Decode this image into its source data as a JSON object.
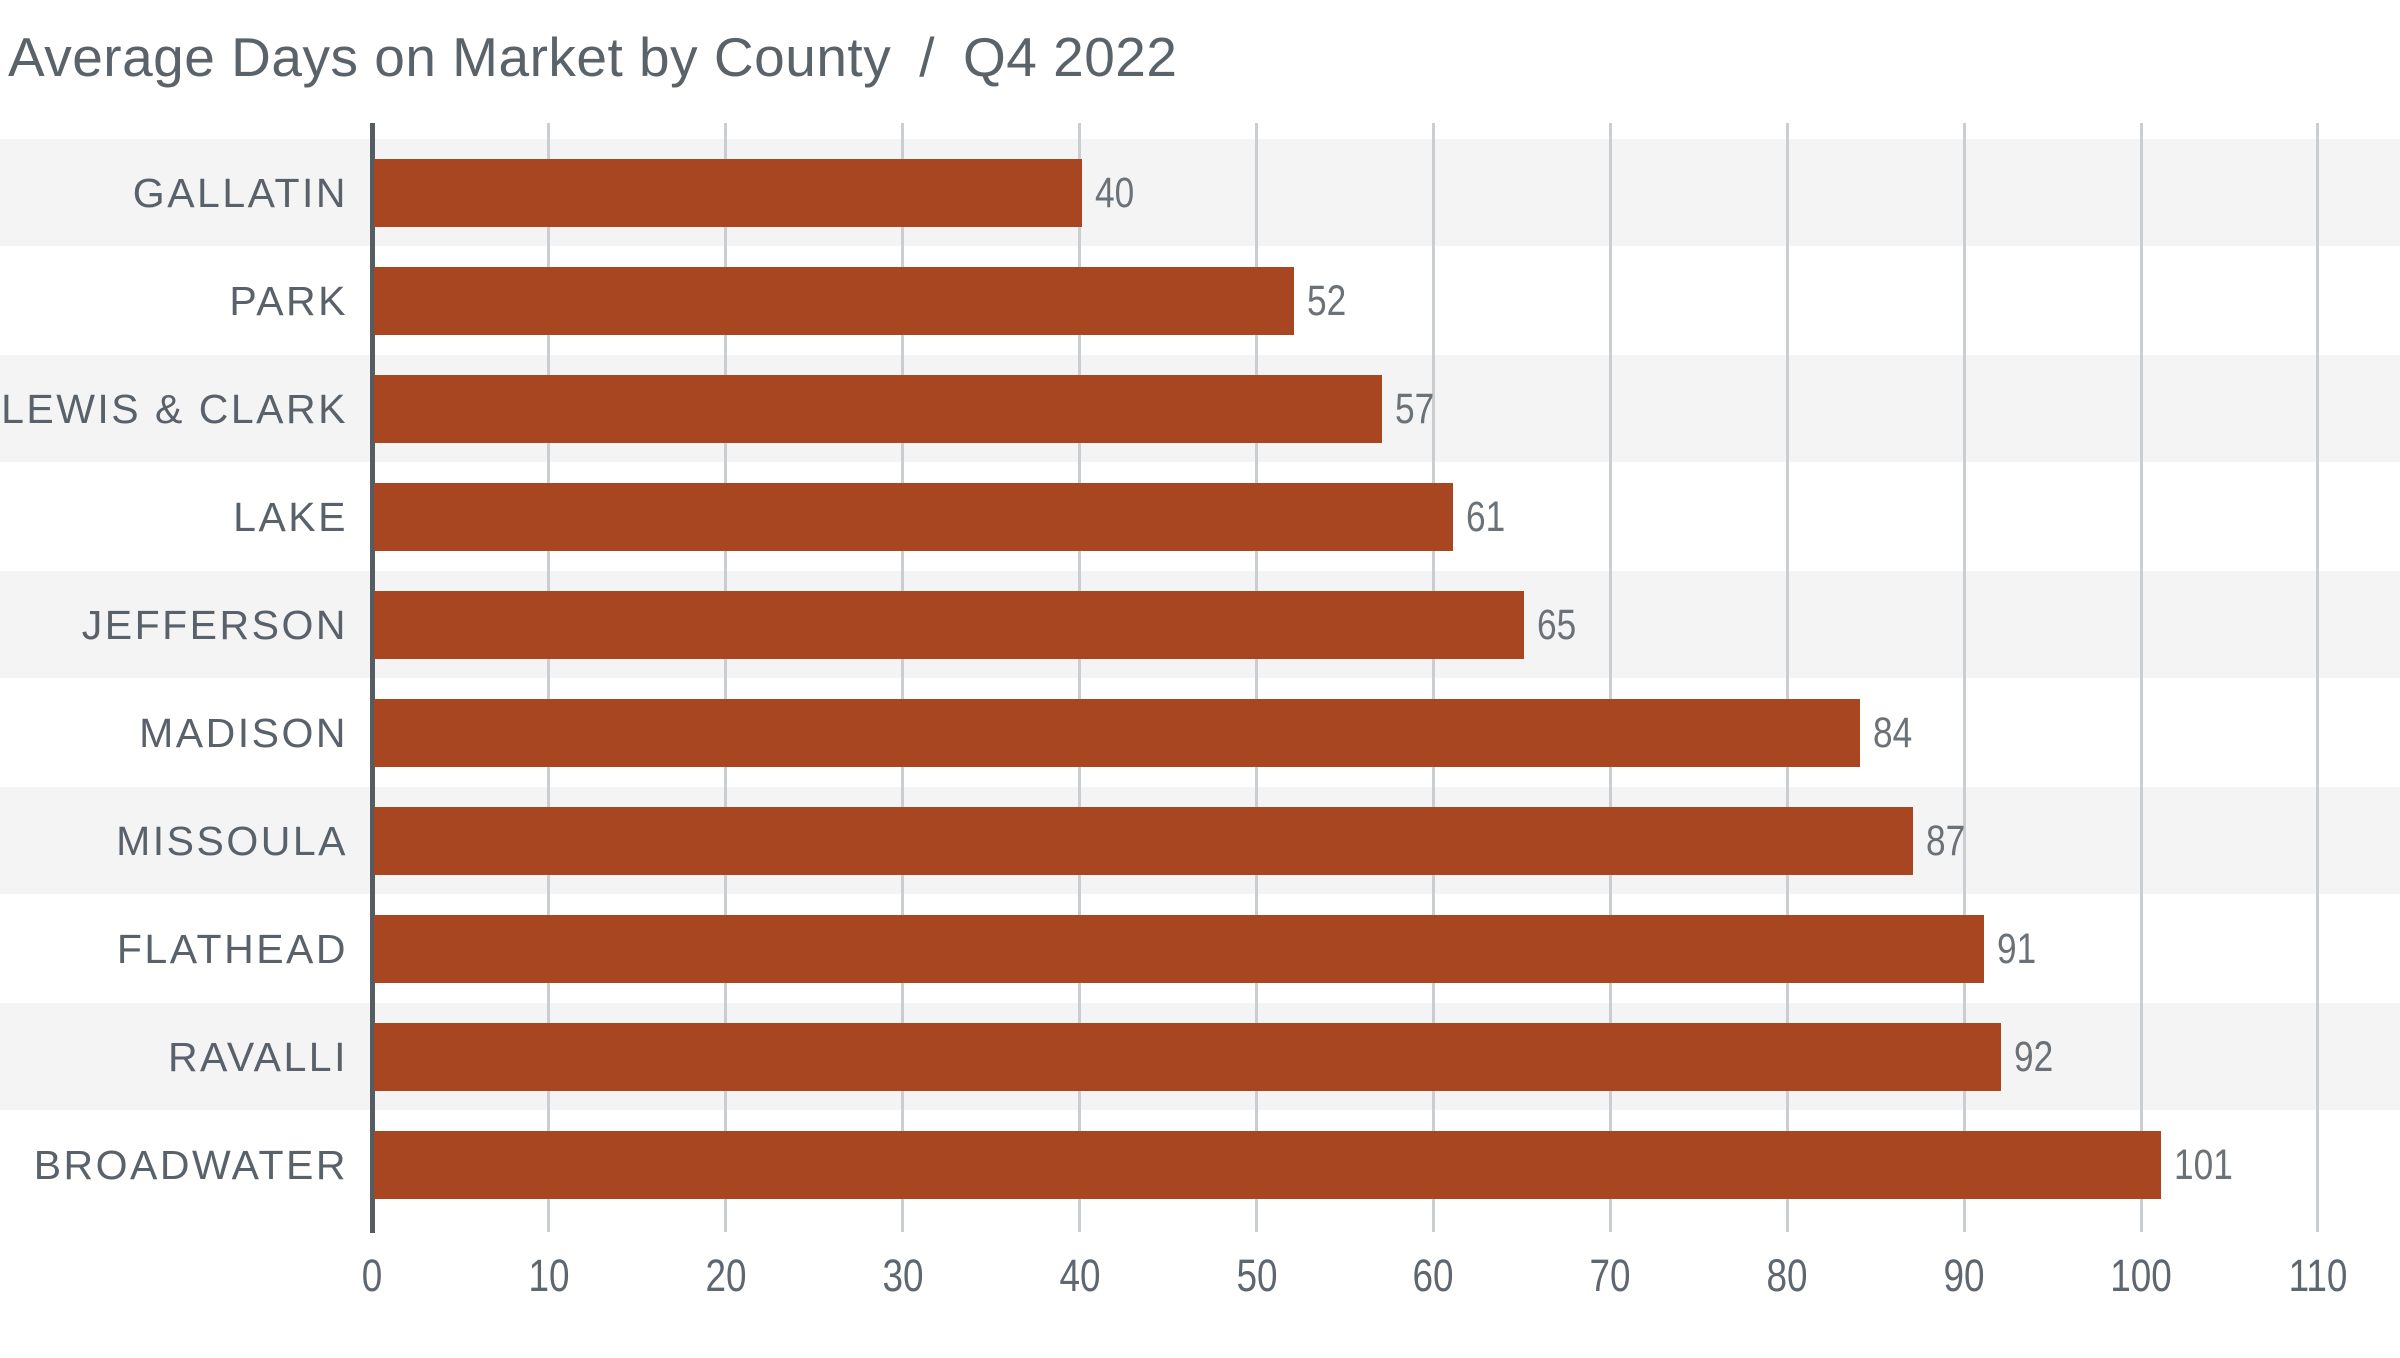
{
  "title": {
    "main": "Average Days on Market by County",
    "separator": "/",
    "period": "Q4 2022"
  },
  "chart_data": {
    "type": "bar",
    "orientation": "horizontal",
    "title": "Average Days on Market by County / Q4 2022",
    "categories": [
      "GALLATIN",
      "PARK",
      "LEWIS & CLARK",
      "LAKE",
      "JEFFERSON",
      "MADISON",
      "MISSOULA",
      "FLATHEAD",
      "RAVALLI",
      "BROADWATER"
    ],
    "values": [
      40,
      52,
      57,
      61,
      65,
      84,
      87,
      91,
      92,
      101
    ],
    "xlabel": "",
    "ylabel": "",
    "xlim": [
      0,
      110
    ],
    "xticks": [
      0,
      10,
      20,
      30,
      40,
      50,
      60,
      70,
      80,
      90,
      100,
      110
    ],
    "grid": true,
    "zebra_row_bands": true,
    "value_labels_shown": true,
    "legend": "none",
    "colors": {
      "bar": "#a84621",
      "band": "#f4f4f5",
      "gridline": "#cbced0",
      "axis": "#555d63",
      "title": "#5a626a",
      "category-label": "#59616a",
      "value-label": "#6a7177",
      "tick-label": "#5e6670",
      "background": "#ffffff"
    }
  }
}
